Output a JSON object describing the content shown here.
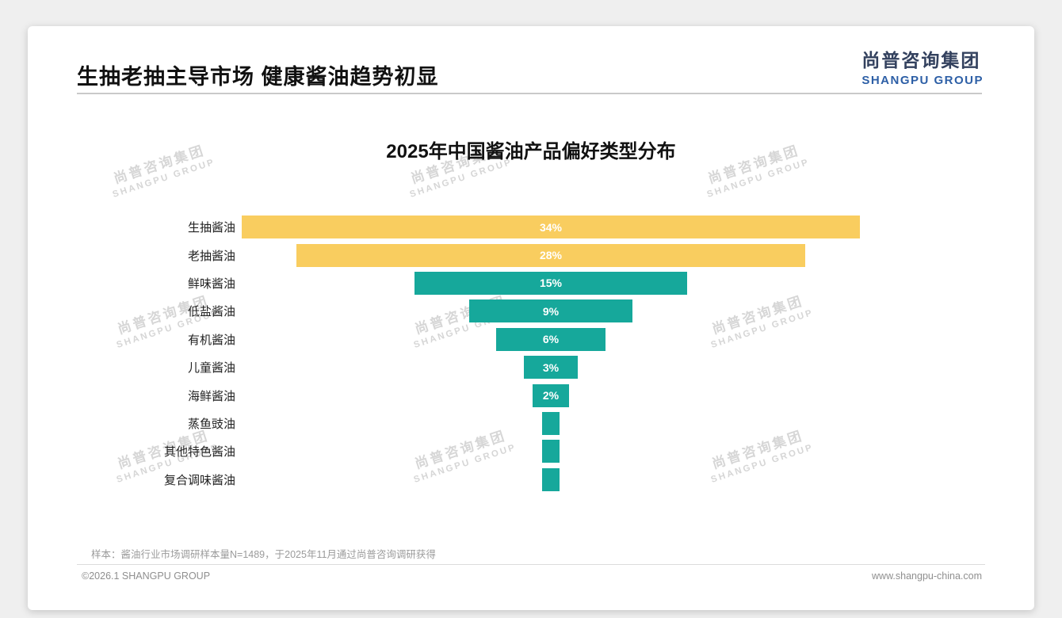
{
  "page": {
    "title": "生抽老抽主导市场 健康酱油趋势初显",
    "logo": {
      "cn": "尚普咨询集团",
      "en": "SHANGPU GROUP"
    },
    "watermark": {
      "cn": "尚普咨询集团",
      "en": "SHANGPU GROUP"
    },
    "footnote": "样本：酱油行业市场调研样本量N=1489，于2025年11月通过尚普咨询调研获得",
    "footer_left": "©2026.1 SHANGPU GROUP",
    "footer_right": "www.shangpu-china.com"
  },
  "chart_data": {
    "type": "bar",
    "title": "2025年中国酱油产品偏好类型分布",
    "orientation": "horizontal-centered-funnel",
    "categories": [
      "生抽酱油",
      "老抽酱油",
      "鲜味酱油",
      "低盐酱油",
      "有机酱油",
      "儿童酱油",
      "海鲜酱油",
      "蒸鱼豉油",
      "其他特色酱油",
      "复合调味酱油"
    ],
    "values": [
      34,
      28,
      15,
      9,
      6,
      3,
      2,
      1,
      1,
      1
    ],
    "labels": [
      "34%",
      "28%",
      "15%",
      "9%",
      "6%",
      "3%",
      "2%",
      "",
      "",
      ""
    ],
    "colors": [
      "#F9CD5F",
      "#F9CD5F",
      "#16A89B",
      "#16A89B",
      "#16A89B",
      "#16A89B",
      "#16A89B",
      "#16A89B",
      "#16A89B",
      "#16A89B"
    ],
    "value_suffix": "%",
    "xlim": [
      0,
      34
    ],
    "legend": "none",
    "grid": false
  },
  "colors": {
    "accent_yellow": "#F9CD5F",
    "accent_teal": "#16A89B",
    "logo_blue": "#2d5fa6",
    "watermark_gray": "#d6d6d6"
  }
}
